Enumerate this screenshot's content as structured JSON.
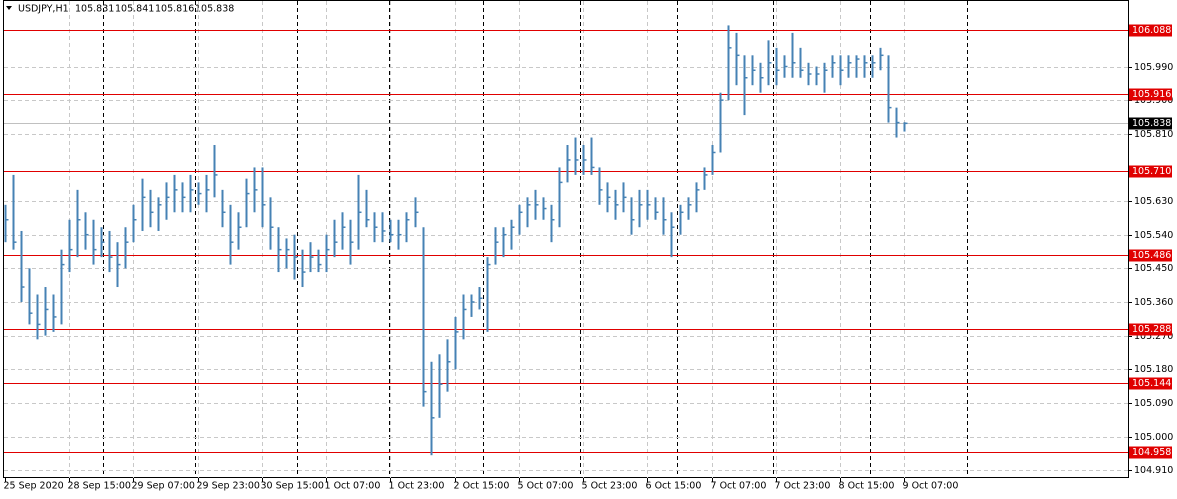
{
  "chart_data": {
    "type": "ohlc",
    "title": "USDJPY,H1",
    "last_bar": {
      "open": 105.831,
      "high": 105.841,
      "low": 105.816,
      "close": 105.838
    },
    "color": "#4682b4",
    "level_color": "#e00000",
    "grid": true,
    "categories": [
      "25 Sep 2020",
      null,
      null,
      null,
      null,
      null,
      null,
      null,
      "28 Sep 15:00",
      null,
      null,
      null,
      null,
      null,
      null,
      null,
      "29 Sep 07:00",
      null,
      null,
      null,
      null,
      null,
      null,
      null,
      "29 Sep 23:00",
      null,
      null,
      null,
      null,
      null,
      null,
      null,
      "30 Sep 15:00",
      null,
      null,
      null,
      null,
      null,
      null,
      null,
      "1 Oct 07:00",
      null,
      null,
      null,
      null,
      null,
      null,
      null,
      "1 Oct 23:00",
      null,
      null,
      null,
      null,
      null,
      null,
      null,
      "2 Oct 15:00",
      null,
      null,
      null,
      null,
      null,
      null,
      null,
      "5 Oct 07:00",
      null,
      null,
      null,
      null,
      null,
      null,
      null,
      "5 Oct 23:00",
      null,
      null,
      null,
      null,
      null,
      null,
      null,
      "6 Oct 15:00",
      null,
      null,
      null,
      null,
      null,
      null,
      null,
      "7 Oct 07:00",
      null,
      null,
      null,
      null,
      null,
      null,
      null,
      "7 Oct 23:00",
      null,
      null,
      null,
      null,
      null,
      null,
      null,
      "8 Oct 15:00",
      null,
      null,
      null,
      null,
      null,
      null,
      null,
      "9 Oct 07:00"
    ],
    "high": [
      105.62,
      105.7,
      105.55,
      105.45,
      105.38,
      105.4,
      105.38,
      105.5,
      105.58,
      105.66,
      105.6,
      105.58,
      105.56,
      105.55,
      105.52,
      105.56,
      105.62,
      105.69,
      105.66,
      105.64,
      105.68,
      105.7,
      105.68,
      105.7,
      105.68,
      105.7,
      105.78,
      105.66,
      105.62,
      105.6,
      105.69,
      105.72,
      105.72,
      105.64,
      105.56,
      105.53,
      105.54,
      105.5,
      105.52,
      105.5,
      105.54,
      105.58,
      105.6,
      105.58,
      105.7,
      105.66,
      105.6,
      105.6,
      105.58,
      105.58,
      105.6,
      105.64,
      105.56,
      105.2,
      105.22,
      105.26,
      105.32,
      105.38,
      105.38,
      105.4,
      105.48,
      105.56,
      105.56,
      105.58,
      105.62,
      105.64,
      105.66,
      105.64,
      105.62,
      105.72,
      105.78,
      105.8,
      105.78,
      105.8,
      105.72,
      105.68,
      105.66,
      105.68,
      105.64,
      105.66,
      105.66,
      105.64,
      105.64,
      105.6,
      105.62,
      105.64,
      105.68,
      105.72,
      105.78,
      105.92,
      106.1,
      106.08,
      106.02,
      106.02,
      106.0,
      106.06,
      106.04,
      106.02,
      106.08,
      106.04,
      106.0,
      105.99,
      106.0,
      106.02,
      106.02,
      106.02,
      106.02,
      106.02,
      106.02,
      106.04,
      106.02,
      105.88,
      105.841
    ],
    "low": [
      105.52,
      105.5,
      105.36,
      105.3,
      105.26,
      105.27,
      105.28,
      105.3,
      105.44,
      105.48,
      105.5,
      105.46,
      105.48,
      105.44,
      105.4,
      105.45,
      105.52,
      105.55,
      105.56,
      105.55,
      105.58,
      105.6,
      105.6,
      105.6,
      105.62,
      105.6,
      105.64,
      105.56,
      105.46,
      105.5,
      105.56,
      105.6,
      105.56,
      105.5,
      105.44,
      105.45,
      105.42,
      105.4,
      105.44,
      105.44,
      105.44,
      105.48,
      105.5,
      105.46,
      105.5,
      105.56,
      105.52,
      105.52,
      105.52,
      105.5,
      105.52,
      105.56,
      105.08,
      104.95,
      105.05,
      105.12,
      105.18,
      105.26,
      105.32,
      105.34,
      105.28,
      105.46,
      105.48,
      105.5,
      105.54,
      105.56,
      105.58,
      105.58,
      105.52,
      105.56,
      105.68,
      105.7,
      105.7,
      105.7,
      105.62,
      105.6,
      105.58,
      105.6,
      105.54,
      105.56,
      105.58,
      105.58,
      105.54,
      105.48,
      105.54,
      105.58,
      105.6,
      105.66,
      105.7,
      105.76,
      105.9,
      105.94,
      105.86,
      105.94,
      105.92,
      105.94,
      105.94,
      105.96,
      105.96,
      105.96,
      105.94,
      105.94,
      105.92,
      105.96,
      105.94,
      105.96,
      105.96,
      105.96,
      105.96,
      105.98,
      105.84,
      105.8,
      105.816
    ],
    "close": [
      105.58,
      105.52,
      105.4,
      105.33,
      105.3,
      105.34,
      105.32,
      105.46,
      105.5,
      105.58,
      105.54,
      105.5,
      105.52,
      105.48,
      105.46,
      105.52,
      105.58,
      105.64,
      105.6,
      105.62,
      105.64,
      105.66,
      105.64,
      105.66,
      105.65,
      105.66,
      105.7,
      105.6,
      105.52,
      105.56,
      105.65,
      105.66,
      105.62,
      105.56,
      105.5,
      105.5,
      105.48,
      105.44,
      105.48,
      105.46,
      105.5,
      105.52,
      105.56,
      105.52,
      105.6,
      105.58,
      105.56,
      105.55,
      105.54,
      105.54,
      105.58,
      105.6,
      105.12,
      105.05,
      105.14,
      105.2,
      105.28,
      105.34,
      105.36,
      105.37,
      105.46,
      105.52,
      105.54,
      105.56,
      105.6,
      105.62,
      105.62,
      105.61,
      105.58,
      105.68,
      105.74,
      105.74,
      105.74,
      105.72,
      105.66,
      105.64,
      105.62,
      105.64,
      105.58,
      105.62,
      105.62,
      105.6,
      105.58,
      105.56,
      105.6,
      105.62,
      105.66,
      105.7,
      105.76,
      105.9,
      106.04,
      106.02,
      105.96,
      105.98,
      105.96,
      106.0,
      105.98,
      105.99,
      106.0,
      105.98,
      105.97,
      105.97,
      105.98,
      106.0,
      105.98,
      106.0,
      106.01,
      106.0,
      106.0,
      106.02,
      105.88,
      105.84,
      105.838
    ],
    "levels": [
      106.088,
      105.916,
      {
        "value": 105.71,
        "label": "105.710"
      },
      105.486,
      105.288,
      105.144,
      104.958
    ],
    "current_price": 105.838,
    "ylim": [
      104.889,
      106.168
    ],
    "yticks": [
      {
        "value": 104.91,
        "label": "104.910"
      },
      {
        "value": 105.0,
        "label": "105.000"
      },
      {
        "value": 105.09,
        "label": "105.090"
      },
      {
        "value": 105.18,
        "label": "105.180"
      },
      {
        "value": 105.27,
        "label": "105.270"
      },
      {
        "value": 105.36,
        "label": "105.360"
      },
      {
        "value": 105.45,
        "label": "105.450"
      },
      {
        "value": 105.54,
        "label": "105.540"
      },
      {
        "value": 105.63,
        "label": "105.630"
      },
      {
        "value": 105.81,
        "label": "105.810"
      },
      {
        "value": 105.9,
        "label": "105.900"
      },
      {
        "value": 105.99,
        "label": "105.990"
      }
    ]
  }
}
